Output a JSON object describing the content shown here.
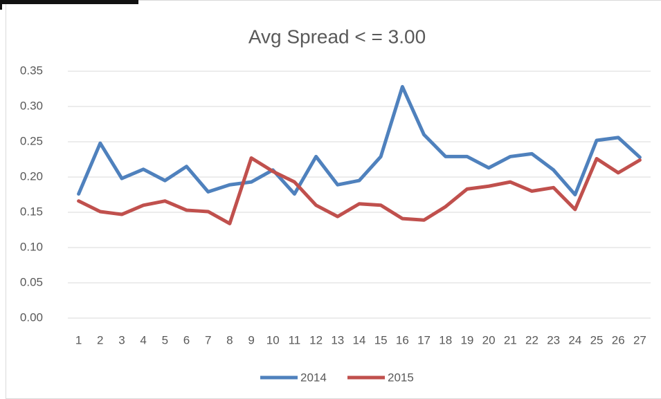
{
  "chart_data": {
    "type": "line",
    "title": "Avg Spread < = 3.00",
    "categories": [
      "1",
      "2",
      "3",
      "4",
      "5",
      "6",
      "7",
      "8",
      "9",
      "10",
      "11",
      "12",
      "13",
      "14",
      "15",
      "16",
      "17",
      "18",
      "19",
      "20",
      "21",
      "22",
      "23",
      "24",
      "25",
      "26",
      "27"
    ],
    "series": [
      {
        "name": "2014",
        "color": "#4f81bd",
        "values": [
          0.176,
          0.248,
          0.198,
          0.211,
          0.195,
          0.215,
          0.179,
          0.189,
          0.193,
          0.21,
          0.176,
          0.229,
          0.189,
          0.195,
          0.229,
          0.328,
          0.26,
          0.229,
          0.229,
          0.213,
          0.229,
          0.233,
          0.21,
          0.175,
          0.252,
          0.256,
          0.228
        ]
      },
      {
        "name": "2015",
        "color": "#c0504d",
        "values": [
          0.166,
          0.151,
          0.147,
          0.16,
          0.166,
          0.153,
          0.151,
          0.134,
          0.227,
          0.208,
          0.193,
          0.16,
          0.144,
          0.162,
          0.16,
          0.141,
          0.139,
          0.158,
          0.183,
          0.187,
          0.193,
          0.18,
          0.185,
          0.154,
          0.226,
          0.206,
          0.224
        ]
      }
    ],
    "ylim": [
      0,
      0.35
    ],
    "yticks": [
      {
        "value": 0,
        "label": "0.00"
      },
      {
        "value": 0.05,
        "label": "0.05"
      },
      {
        "value": 0.1,
        "label": "0.10"
      },
      {
        "value": 0.15,
        "label": "0.15"
      },
      {
        "value": 0.2,
        "label": "0.20"
      },
      {
        "value": 0.25,
        "label": "0.25"
      },
      {
        "value": 0.3,
        "label": "0.30"
      },
      {
        "value": 0.35,
        "label": "0.35"
      }
    ],
    "grid": true,
    "legend": "bottom"
  }
}
